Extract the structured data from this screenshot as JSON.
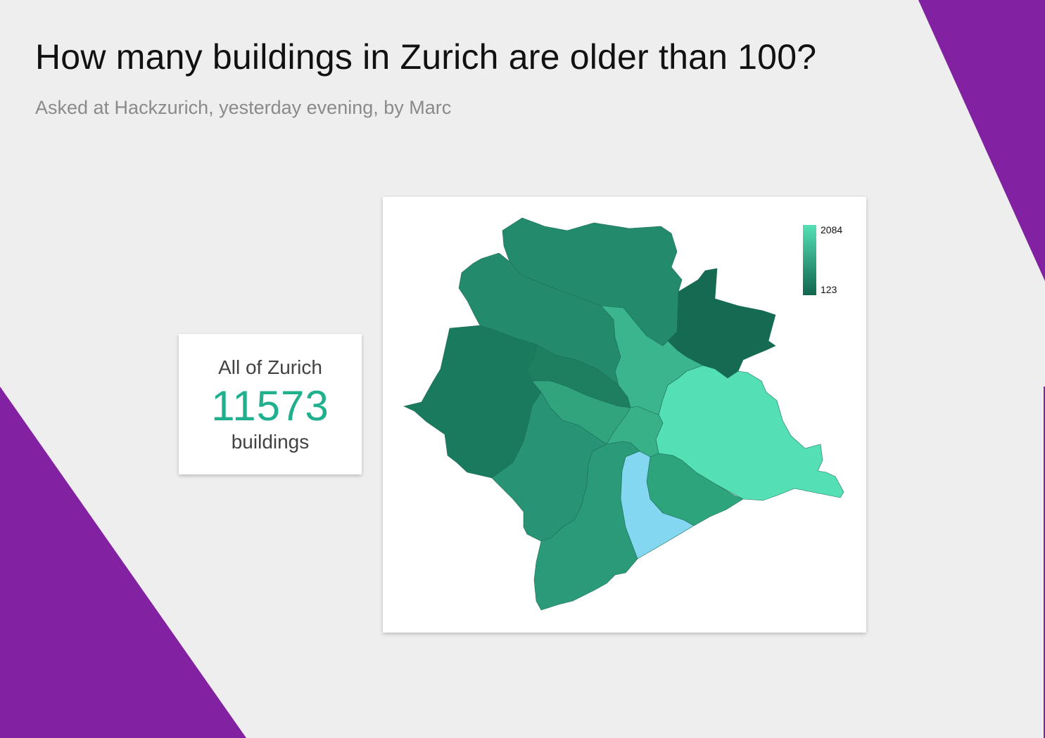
{
  "header": {
    "title": "How many buildings in Zurich are older than 100?",
    "subtitle": "Asked at Hackzurich, yesterday evening, by Marc"
  },
  "stat": {
    "label": "All of Zurich",
    "value": "11573",
    "unit": "buildings"
  },
  "legend": {
    "max_label": "2084",
    "min_label": "123",
    "color_max": "#54e0b4",
    "color_min": "#12654e"
  },
  "map": {
    "highlight_color": "#84d7f0",
    "districts": [
      {
        "id": "north",
        "fill": "#248a6c"
      },
      {
        "id": "northwest",
        "fill": "#248a6c"
      },
      {
        "id": "west",
        "fill": "#1a7a5e"
      },
      {
        "id": "northeast",
        "fill": "#146b52"
      },
      {
        "id": "east",
        "fill": "#54e0b4"
      },
      {
        "id": "central-north",
        "fill": "#3bb58d"
      },
      {
        "id": "band",
        "fill": "#1d7e60"
      },
      {
        "id": "central-west",
        "fill": "#31a47e"
      },
      {
        "id": "center",
        "fill": "#38b088"
      },
      {
        "id": "southwest",
        "fill": "#289475"
      },
      {
        "id": "south",
        "fill": "#2b9a78"
      },
      {
        "id": "southeast",
        "fill": "#2ea47d"
      },
      {
        "id": "lake",
        "fill": "#84d7f0"
      }
    ]
  },
  "colors": {
    "background": "#eeeeee",
    "accent": "#8221a1",
    "stat_value": "#21b08e"
  }
}
